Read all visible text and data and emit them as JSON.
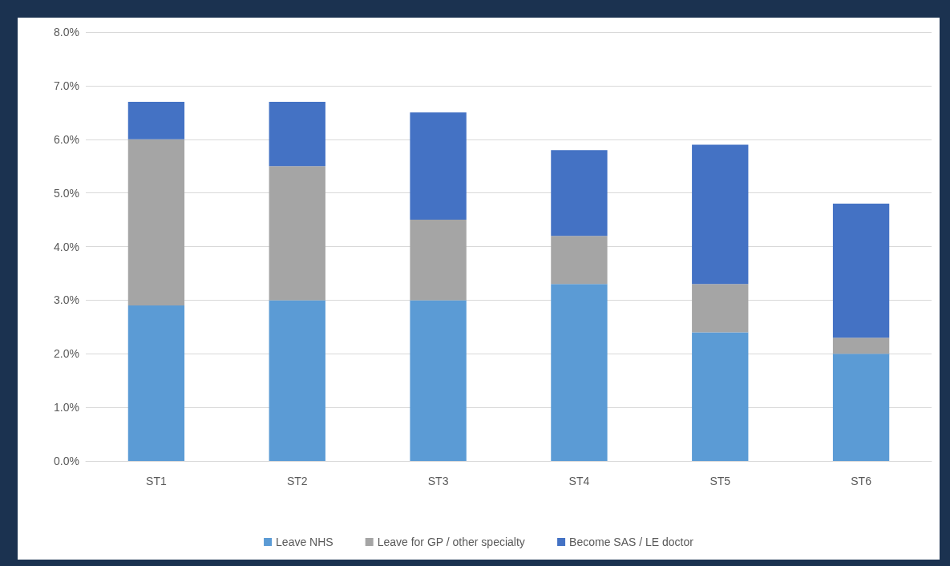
{
  "chart_data": {
    "type": "bar",
    "stacked": true,
    "categories": [
      "ST1",
      "ST2",
      "ST3",
      "ST4",
      "ST5",
      "ST6"
    ],
    "series": [
      {
        "name": "Leave NHS",
        "color": "#5b9bd5",
        "values": [
          2.9,
          3.0,
          3.0,
          3.3,
          2.4,
          2.0
        ]
      },
      {
        "name": "Leave for GP / other specialty",
        "color": "#a5a5a5",
        "values": [
          3.1,
          2.5,
          1.5,
          0.9,
          0.9,
          0.3
        ]
      },
      {
        "name": "Become SAS / LE doctor",
        "color": "#4472c4",
        "values": [
          0.7,
          1.2,
          2.0,
          1.6,
          2.6,
          2.5
        ]
      }
    ],
    "ylim": [
      0,
      8
    ],
    "yticks": [
      {
        "value": 0,
        "label": "0.0%"
      },
      {
        "value": 1,
        "label": "1.0%"
      },
      {
        "value": 2,
        "label": "2.0%"
      },
      {
        "value": 3,
        "label": "3.0%"
      },
      {
        "value": 4,
        "label": "4.0%"
      },
      {
        "value": 5,
        "label": "5.0%"
      },
      {
        "value": 6,
        "label": "6.0%"
      },
      {
        "value": 7,
        "label": "7.0%"
      },
      {
        "value": 8,
        "label": "8.0%"
      }
    ],
    "grid": "y",
    "legend": "bottom"
  }
}
